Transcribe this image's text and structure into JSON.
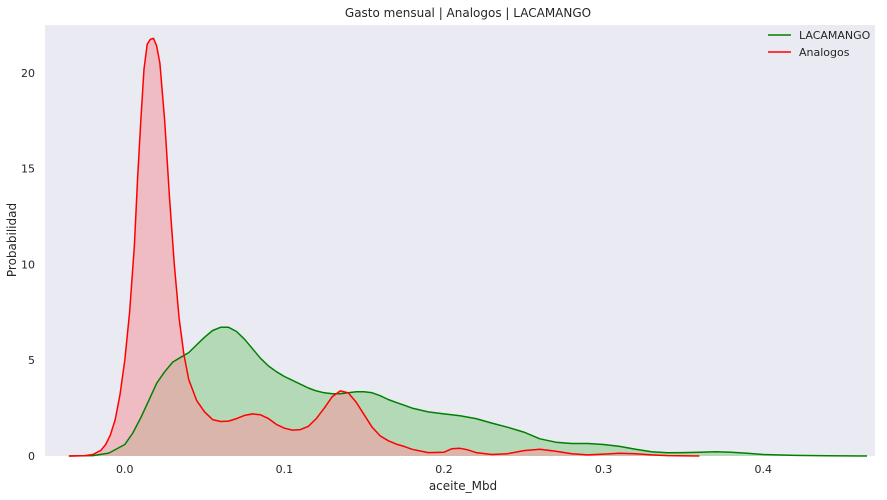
{
  "chart_data": {
    "type": "area",
    "title": "Gasto mensual | Analogos | LACAMANGO",
    "xlabel": "aceite_Mbd",
    "ylabel": "Probabilidad",
    "xlim": [
      -0.05,
      0.47
    ],
    "ylim": [
      0,
      22.5
    ],
    "x_ticks": [
      0.0,
      0.1,
      0.2,
      0.3,
      0.4
    ],
    "x_tick_labels": [
      "0.0",
      "0.1",
      "0.2",
      "0.3",
      "0.4"
    ],
    "y_ticks": [
      0,
      5,
      10,
      15,
      20
    ],
    "y_tick_labels": [
      "0",
      "5",
      "10",
      "15",
      "20"
    ],
    "grid": false,
    "background": "#eaeaf2",
    "legend_position": "top-right",
    "series": [
      {
        "name": "LACAMANGO",
        "color": "#008000",
        "fill": "#8fcd8f",
        "fill_opacity": 0.6,
        "points": [
          [
            -0.035,
            0.0
          ],
          [
            -0.02,
            0.02
          ],
          [
            -0.01,
            0.15
          ],
          [
            0.0,
            0.6
          ],
          [
            0.005,
            1.2
          ],
          [
            0.01,
            2.0
          ],
          [
            0.015,
            2.9
          ],
          [
            0.02,
            3.8
          ],
          [
            0.025,
            4.4
          ],
          [
            0.03,
            4.9
          ],
          [
            0.035,
            5.15
          ],
          [
            0.04,
            5.4
          ],
          [
            0.045,
            5.8
          ],
          [
            0.05,
            6.2
          ],
          [
            0.055,
            6.55
          ],
          [
            0.06,
            6.72
          ],
          [
            0.065,
            6.72
          ],
          [
            0.07,
            6.5
          ],
          [
            0.075,
            6.1
          ],
          [
            0.08,
            5.6
          ],
          [
            0.085,
            5.1
          ],
          [
            0.09,
            4.7
          ],
          [
            0.095,
            4.4
          ],
          [
            0.1,
            4.15
          ],
          [
            0.105,
            3.95
          ],
          [
            0.11,
            3.75
          ],
          [
            0.115,
            3.55
          ],
          [
            0.12,
            3.4
          ],
          [
            0.125,
            3.3
          ],
          [
            0.13,
            3.25
          ],
          [
            0.135,
            3.25
          ],
          [
            0.14,
            3.3
          ],
          [
            0.145,
            3.35
          ],
          [
            0.15,
            3.35
          ],
          [
            0.155,
            3.3
          ],
          [
            0.16,
            3.15
          ],
          [
            0.165,
            2.95
          ],
          [
            0.17,
            2.8
          ],
          [
            0.175,
            2.65
          ],
          [
            0.18,
            2.5
          ],
          [
            0.19,
            2.3
          ],
          [
            0.2,
            2.2
          ],
          [
            0.21,
            2.1
          ],
          [
            0.22,
            1.95
          ],
          [
            0.23,
            1.72
          ],
          [
            0.24,
            1.5
          ],
          [
            0.25,
            1.25
          ],
          [
            0.26,
            0.9
          ],
          [
            0.27,
            0.72
          ],
          [
            0.28,
            0.65
          ],
          [
            0.29,
            0.65
          ],
          [
            0.3,
            0.6
          ],
          [
            0.31,
            0.5
          ],
          [
            0.32,
            0.35
          ],
          [
            0.33,
            0.22
          ],
          [
            0.34,
            0.17
          ],
          [
            0.35,
            0.18
          ],
          [
            0.36,
            0.2
          ],
          [
            0.37,
            0.22
          ],
          [
            0.38,
            0.2
          ],
          [
            0.39,
            0.14
          ],
          [
            0.4,
            0.08
          ],
          [
            0.42,
            0.03
          ],
          [
            0.44,
            0.01
          ],
          [
            0.465,
            0.0
          ]
        ]
      },
      {
        "name": "Analogos",
        "color": "#ff0000",
        "fill": "#f49ca4",
        "fill_opacity": 0.6,
        "points": [
          [
            -0.035,
            0.0
          ],
          [
            -0.025,
            0.02
          ],
          [
            -0.02,
            0.08
          ],
          [
            -0.015,
            0.3
          ],
          [
            -0.012,
            0.6
          ],
          [
            -0.009,
            1.1
          ],
          [
            -0.006,
            1.9
          ],
          [
            -0.003,
            3.2
          ],
          [
            0.0,
            5.0
          ],
          [
            0.003,
            7.5
          ],
          [
            0.006,
            11.0
          ],
          [
            0.008,
            14.5
          ],
          [
            0.01,
            17.5
          ],
          [
            0.012,
            20.2
          ],
          [
            0.014,
            21.5
          ],
          [
            0.016,
            21.75
          ],
          [
            0.018,
            21.8
          ],
          [
            0.02,
            21.4
          ],
          [
            0.022,
            20.5
          ],
          [
            0.025,
            17.5
          ],
          [
            0.028,
            13.5
          ],
          [
            0.031,
            10.0
          ],
          [
            0.034,
            7.2
          ],
          [
            0.037,
            5.3
          ],
          [
            0.04,
            4.0
          ],
          [
            0.045,
            2.9
          ],
          [
            0.05,
            2.3
          ],
          [
            0.055,
            1.9
          ],
          [
            0.06,
            1.8
          ],
          [
            0.065,
            1.82
          ],
          [
            0.07,
            1.95
          ],
          [
            0.075,
            2.12
          ],
          [
            0.08,
            2.2
          ],
          [
            0.085,
            2.15
          ],
          [
            0.09,
            1.95
          ],
          [
            0.095,
            1.65
          ],
          [
            0.1,
            1.45
          ],
          [
            0.105,
            1.35
          ],
          [
            0.11,
            1.38
          ],
          [
            0.115,
            1.55
          ],
          [
            0.12,
            1.95
          ],
          [
            0.125,
            2.5
          ],
          [
            0.13,
            3.1
          ],
          [
            0.135,
            3.4
          ],
          [
            0.14,
            3.3
          ],
          [
            0.145,
            2.8
          ],
          [
            0.15,
            2.15
          ],
          [
            0.155,
            1.5
          ],
          [
            0.16,
            1.05
          ],
          [
            0.165,
            0.8
          ],
          [
            0.17,
            0.62
          ],
          [
            0.175,
            0.5
          ],
          [
            0.18,
            0.35
          ],
          [
            0.19,
            0.18
          ],
          [
            0.2,
            0.2
          ],
          [
            0.205,
            0.38
          ],
          [
            0.21,
            0.4
          ],
          [
            0.215,
            0.32
          ],
          [
            0.22,
            0.18
          ],
          [
            0.23,
            0.08
          ],
          [
            0.24,
            0.12
          ],
          [
            0.25,
            0.28
          ],
          [
            0.26,
            0.35
          ],
          [
            0.27,
            0.25
          ],
          [
            0.28,
            0.12
          ],
          [
            0.29,
            0.06
          ],
          [
            0.3,
            0.1
          ],
          [
            0.31,
            0.14
          ],
          [
            0.32,
            0.12
          ],
          [
            0.33,
            0.06
          ],
          [
            0.34,
            0.02
          ],
          [
            0.36,
            0.0
          ]
        ]
      }
    ]
  }
}
